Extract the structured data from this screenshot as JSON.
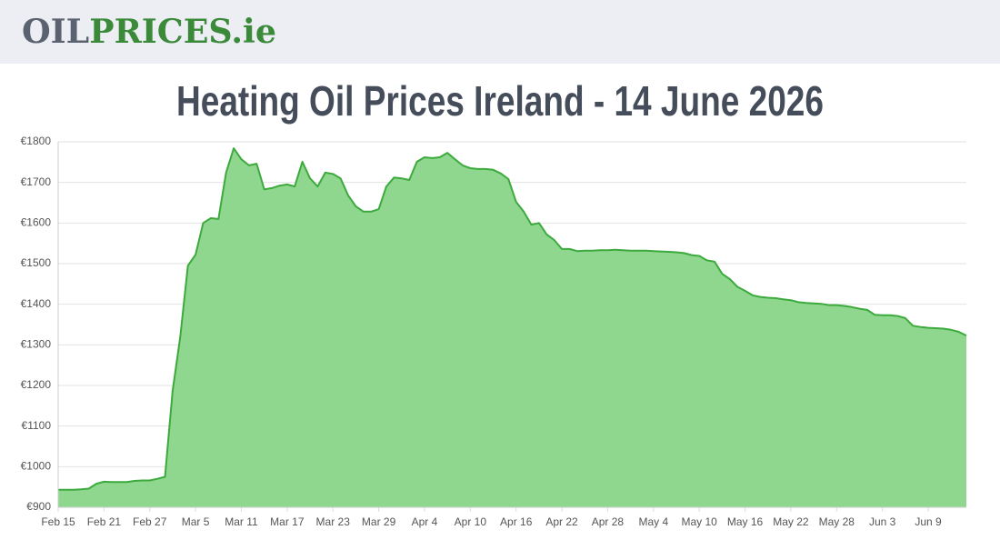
{
  "header": {
    "logo": [
      "OIL",
      "PRICES",
      ".ie"
    ]
  },
  "chart_data": {
    "type": "area",
    "title": "Heating Oil Prices Ireland - 14 June 2026",
    "categories": [
      "Feb 15",
      null,
      null,
      null,
      null,
      null,
      "Feb 21",
      null,
      null,
      null,
      null,
      null,
      "Feb 27",
      null,
      null,
      null,
      null,
      null,
      "Mar 5",
      null,
      null,
      null,
      null,
      null,
      "Mar 11",
      null,
      null,
      null,
      null,
      null,
      "Mar 17",
      null,
      null,
      null,
      null,
      null,
      "Mar 23",
      null,
      null,
      null,
      null,
      null,
      "Mar 29",
      null,
      null,
      null,
      null,
      null,
      "Apr 4",
      null,
      null,
      null,
      null,
      null,
      "Apr 10",
      null,
      null,
      null,
      null,
      null,
      "Apr 16",
      null,
      null,
      null,
      null,
      null,
      "Apr 22",
      null,
      null,
      null,
      null,
      null,
      "Apr 28",
      null,
      null,
      null,
      null,
      null,
      "May 4",
      null,
      null,
      null,
      null,
      null,
      "May 10",
      null,
      null,
      null,
      null,
      null,
      "May 16",
      null,
      null,
      null,
      null,
      null,
      "May 22",
      null,
      null,
      null,
      null,
      null,
      "May 28",
      null,
      null,
      null,
      null,
      null,
      "Jun 3",
      null,
      null,
      null,
      null,
      null,
      "Jun 9",
      null,
      null,
      null,
      null,
      null
    ],
    "values": [
      943,
      943,
      943,
      944,
      946,
      958,
      963,
      962,
      962,
      962,
      965,
      966,
      966,
      970,
      975,
      1187,
      1320,
      1495,
      1522,
      1600,
      1612,
      1610,
      1724,
      1784,
      1757,
      1742,
      1746,
      1683,
      1686,
      1692,
      1695,
      1690,
      1751,
      1710,
      1690,
      1724,
      1721,
      1710,
      1668,
      1641,
      1628,
      1628,
      1634,
      1690,
      1712,
      1710,
      1706,
      1751,
      1762,
      1760,
      1762,
      1773,
      1757,
      1742,
      1735,
      1733,
      1733,
      1731,
      1722,
      1708,
      1652,
      1628,
      1596,
      1600,
      1572,
      1558,
      1536,
      1536,
      1531,
      1532,
      1532,
      1533,
      1533,
      1534,
      1533,
      1532,
      1532,
      1532,
      1531,
      1530,
      1529,
      1528,
      1526,
      1521,
      1519,
      1508,
      1505,
      1475,
      1462,
      1443,
      1433,
      1422,
      1418,
      1416,
      1415,
      1412,
      1410,
      1405,
      1403,
      1402,
      1401,
      1398,
      1398,
      1396,
      1393,
      1389,
      1386,
      1374,
      1373,
      1373,
      1371,
      1366,
      1347,
      1344,
      1342,
      1341,
      1340,
      1337,
      1332,
      1323
    ],
    "color": "#3daa3d",
    "fill": "#8fd68f",
    "ylim": [
      900,
      1800
    ],
    "yticks": [
      {
        "value": 900,
        "label": "€900"
      },
      {
        "value": 1000,
        "label": "€1000"
      },
      {
        "value": 1100,
        "label": "€1100"
      },
      {
        "value": 1200,
        "label": "€1200"
      },
      {
        "value": 1300,
        "label": "€1300"
      },
      {
        "value": 1400,
        "label": "€1400"
      },
      {
        "value": 1500,
        "label": "€1500"
      },
      {
        "value": 1600,
        "label": "€1600"
      },
      {
        "value": 1700,
        "label": "€1700"
      },
      {
        "value": 1800,
        "label": "€1800"
      }
    ],
    "grid": true
  }
}
